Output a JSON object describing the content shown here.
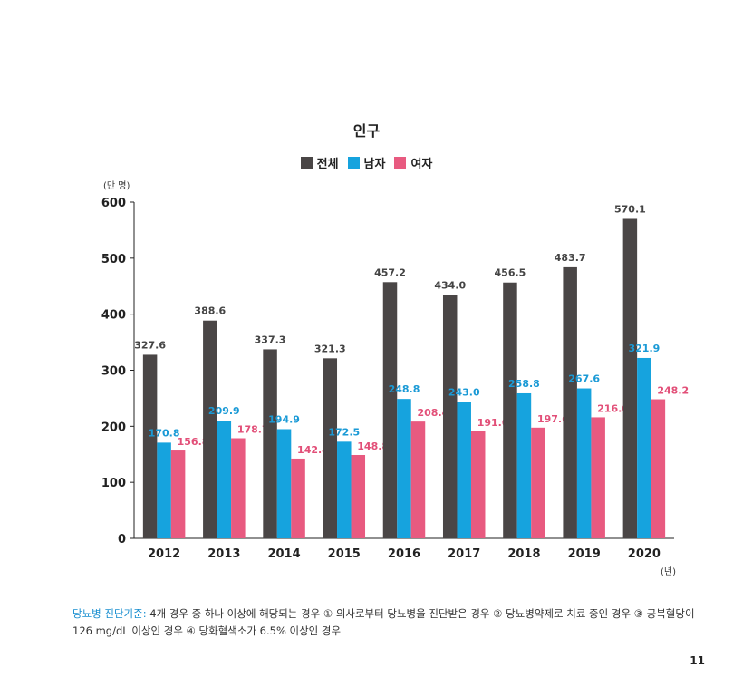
{
  "chart_data": {
    "type": "bar",
    "title": "인구",
    "ylabel": "(만 명)",
    "xlabel": "(년)",
    "ylim": [
      0,
      600
    ],
    "yticks": [
      0,
      100,
      200,
      300,
      400,
      500,
      600
    ],
    "categories": [
      "2012",
      "2013",
      "2014",
      "2015",
      "2016",
      "2017",
      "2018",
      "2019",
      "2020"
    ],
    "series": [
      {
        "name": "전체",
        "color": "#4a4646",
        "label_color": "#444444",
        "values": [
          327.6,
          388.6,
          337.3,
          321.3,
          457.2,
          434.0,
          456.5,
          483.7,
          570.1
        ],
        "labels": [
          "327.6",
          "388.6",
          "337.3",
          "321.3",
          "457.2",
          "434.0",
          "456.5",
          "483.7",
          "570.1"
        ]
      },
      {
        "name": "남자",
        "color": "#16a3de",
        "label_color": "#1a9ad6",
        "values": [
          170.8,
          209.9,
          194.9,
          172.5,
          248.8,
          243.0,
          258.8,
          267.6,
          321.9
        ],
        "labels": [
          "170.8",
          "209.9",
          "194.9",
          "172.5",
          "248.8",
          "243.0",
          "258.8",
          "267.6",
          "321.9"
        ]
      },
      {
        "name": "여자",
        "color": "#e85a80",
        "label_color": "#e24f78",
        "values": [
          156.8,
          178.7,
          142.4,
          148.8,
          208.4,
          191.0,
          197.6,
          216.0,
          248.2
        ],
        "labels": [
          "156.8",
          "178.7",
          "142.4",
          "148.8",
          "208.4",
          "191.0",
          "197.6",
          "216.0",
          "248.2"
        ]
      }
    ],
    "legend_position": "top-center",
    "grid": false
  },
  "footnote": {
    "label": "당뇨병 진단기준:",
    "text": " 4개 경우 중 하나 이상에 해당되는 경우 ① 의사로부터 당뇨병을 진단받은 경우 ② 당뇨병약제로 치료 중인 경우 ③ 공복혈당이 126 mg/dL 이상인 경우 ④ 당화혈색소가 6.5% 이상인 경우"
  },
  "page_number": "11"
}
